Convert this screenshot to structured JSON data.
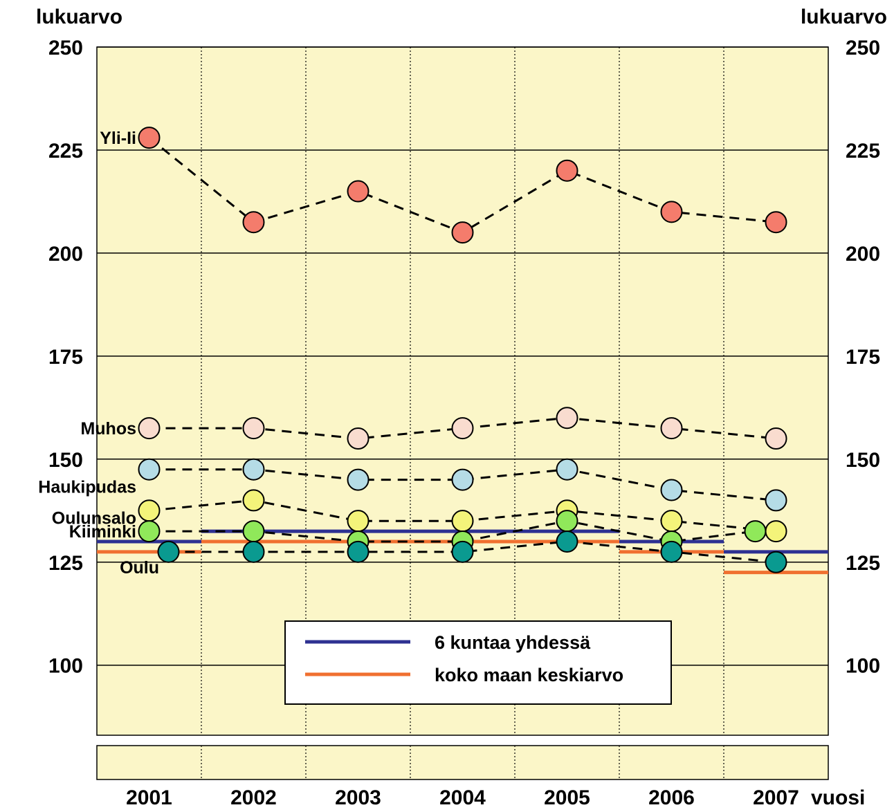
{
  "chart_data": {
    "type": "line",
    "left_axis_title": "lukuarvo",
    "right_axis_title": "lukuarvo",
    "x_axis_unit": "vuosi",
    "categories": [
      "2001",
      "2002",
      "2003",
      "2004",
      "2005",
      "2006",
      "2007"
    ],
    "ylim": [
      83,
      250
    ],
    "yticks": [
      100,
      125,
      150,
      175,
      200,
      225,
      250
    ],
    "grid": "horizontal solid at y ticks, vertical dotted between years",
    "background_color": "#fbf6c8",
    "series": [
      {
        "name": "Yli-Ii",
        "color": "#f47c6c",
        "values": [
          228,
          207.5,
          215,
          205,
          220,
          210,
          207.5
        ]
      },
      {
        "name": "Muhos",
        "color": "#f9dccf",
        "values": [
          157.5,
          157.5,
          155,
          157.5,
          160,
          157.5,
          155
        ]
      },
      {
        "name": "Haukipudas",
        "color": "#b5dce6",
        "values": [
          147.5,
          147.5,
          145,
          145,
          147.5,
          142.5,
          140
        ]
      },
      {
        "name": "Oulunsalo",
        "color": "#f4f47a",
        "values": [
          137.5,
          140,
          135,
          135,
          137.5,
          135,
          132.5
        ]
      },
      {
        "name": "Kiiminki",
        "color": "#90e85a",
        "values": [
          132.5,
          132.5,
          130,
          130,
          135,
          130,
          132.5
        ]
      },
      {
        "name": "Oulu",
        "color": "#0a9a90",
        "values": [
          127.5,
          127.5,
          127.5,
          127.5,
          130,
          127.5,
          125
        ]
      }
    ],
    "reference_lines": [
      {
        "name": "6 kuntaa yhdessä",
        "color": "#2e3192",
        "values": [
          130,
          132.5,
          132.5,
          132.5,
          132.5,
          130,
          127.5
        ]
      },
      {
        "name": "koko maan keskiarvo",
        "color": "#f07030",
        "values": [
          127.5,
          130,
          130,
          130,
          130,
          127.5,
          122.5
        ]
      }
    ],
    "legend_position": "bottom-center"
  }
}
